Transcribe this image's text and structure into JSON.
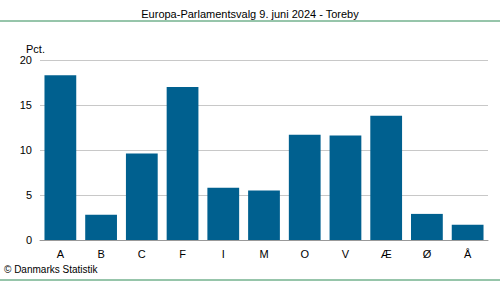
{
  "chart_data": {
    "type": "bar",
    "title": "Europa-Parlamentsvalg 9. juni 2024 - Toreby",
    "ylabel": "Pct.",
    "source": "© Danmarks Statistik",
    "categories": [
      "A",
      "B",
      "C",
      "F",
      "I",
      "M",
      "O",
      "V",
      "Æ",
      "Ø",
      "Å"
    ],
    "values": [
      18.3,
      2.8,
      9.6,
      17.0,
      5.8,
      5.5,
      11.7,
      11.6,
      13.8,
      2.9,
      1.7
    ],
    "color": "#00608f",
    "ylim": [
      0,
      20
    ],
    "yticks": [
      0,
      5,
      10,
      15,
      20
    ],
    "grid": true
  }
}
